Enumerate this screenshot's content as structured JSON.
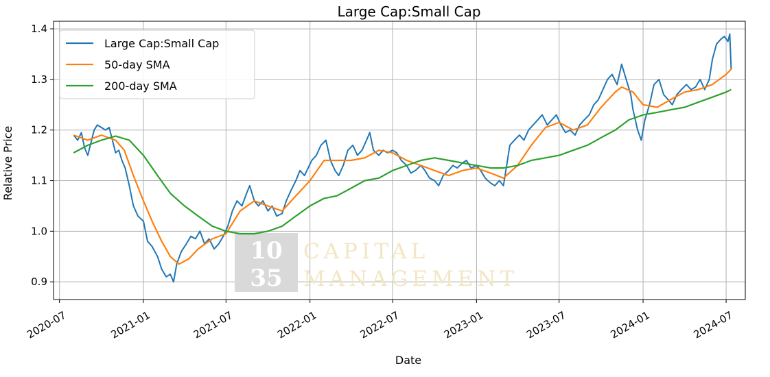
{
  "chart_data": {
    "type": "line",
    "title": "Large Cap:Small Cap",
    "xlabel": "Date",
    "ylabel": "Relative Price",
    "x_ticks": [
      "2020-07",
      "2021-01",
      "2021-07",
      "2022-01",
      "2022-07",
      "2023-01",
      "2023-07",
      "2024-01",
      "2024-07"
    ],
    "y_ticks": [
      "0.9",
      "1.0",
      "1.1",
      "1.2",
      "1.3",
      "1.4"
    ],
    "xlim": [
      "2020-06-18",
      "2024-08-12"
    ],
    "ylim": [
      0.865,
      1.415
    ],
    "grid": true,
    "legend": "top-left",
    "watermark": {
      "number_top": "10",
      "number_bottom": "35",
      "line1": "CAPITAL",
      "line2": "MANAGEMENT"
    },
    "series": [
      {
        "name": "Large Cap:Small Cap",
        "color": "#1f77b4",
        "points": [
          [
            "2020-08-01",
            1.19
          ],
          [
            "2020-08-10",
            1.18
          ],
          [
            "2020-08-18",
            1.195
          ],
          [
            "2020-08-25",
            1.165
          ],
          [
            "2020-09-01",
            1.15
          ],
          [
            "2020-09-08",
            1.175
          ],
          [
            "2020-09-15",
            1.2
          ],
          [
            "2020-09-22",
            1.21
          ],
          [
            "2020-10-01",
            1.205
          ],
          [
            "2020-10-10",
            1.2
          ],
          [
            "2020-10-18",
            1.205
          ],
          [
            "2020-10-25",
            1.18
          ],
          [
            "2020-11-01",
            1.155
          ],
          [
            "2020-11-08",
            1.16
          ],
          [
            "2020-11-15",
            1.14
          ],
          [
            "2020-11-22",
            1.125
          ],
          [
            "2020-12-01",
            1.09
          ],
          [
            "2020-12-10",
            1.05
          ],
          [
            "2020-12-20",
            1.03
          ],
          [
            "2021-01-01",
            1.02
          ],
          [
            "2021-01-10",
            0.98
          ],
          [
            "2021-01-20",
            0.97
          ],
          [
            "2021-02-01",
            0.95
          ],
          [
            "2021-02-10",
            0.925
          ],
          [
            "2021-02-20",
            0.91
          ],
          [
            "2021-03-01",
            0.915
          ],
          [
            "2021-03-08",
            0.9
          ],
          [
            "2021-03-15",
            0.935
          ],
          [
            "2021-03-25",
            0.96
          ],
          [
            "2021-04-05",
            0.975
          ],
          [
            "2021-04-15",
            0.99
          ],
          [
            "2021-04-25",
            0.985
          ],
          [
            "2021-05-05",
            1.0
          ],
          [
            "2021-05-15",
            0.975
          ],
          [
            "2021-05-25",
            0.985
          ],
          [
            "2021-06-05",
            0.965
          ],
          [
            "2021-06-15",
            0.975
          ],
          [
            "2021-06-25",
            0.99
          ],
          [
            "2021-07-05",
            1.01
          ],
          [
            "2021-07-15",
            1.04
          ],
          [
            "2021-07-25",
            1.06
          ],
          [
            "2021-08-05",
            1.05
          ],
          [
            "2021-08-15",
            1.075
          ],
          [
            "2021-08-22",
            1.09
          ],
          [
            "2021-09-01",
            1.06
          ],
          [
            "2021-09-10",
            1.05
          ],
          [
            "2021-09-20",
            1.06
          ],
          [
            "2021-10-01",
            1.04
          ],
          [
            "2021-10-10",
            1.05
          ],
          [
            "2021-10-20",
            1.03
          ],
          [
            "2021-11-01",
            1.035
          ],
          [
            "2021-11-10",
            1.06
          ],
          [
            "2021-11-20",
            1.08
          ],
          [
            "2021-12-01",
            1.1
          ],
          [
            "2021-12-10",
            1.12
          ],
          [
            "2021-12-20",
            1.11
          ],
          [
            "2022-01-05",
            1.14
          ],
          [
            "2022-01-15",
            1.15
          ],
          [
            "2022-01-25",
            1.17
          ],
          [
            "2022-02-05",
            1.18
          ],
          [
            "2022-02-15",
            1.14
          ],
          [
            "2022-02-25",
            1.12
          ],
          [
            "2022-03-05",
            1.11
          ],
          [
            "2022-03-15",
            1.13
          ],
          [
            "2022-03-25",
            1.16
          ],
          [
            "2022-04-05",
            1.17
          ],
          [
            "2022-04-15",
            1.15
          ],
          [
            "2022-04-25",
            1.16
          ],
          [
            "2022-05-05",
            1.18
          ],
          [
            "2022-05-12",
            1.195
          ],
          [
            "2022-05-20",
            1.16
          ],
          [
            "2022-06-01",
            1.15
          ],
          [
            "2022-06-10",
            1.16
          ],
          [
            "2022-06-20",
            1.155
          ],
          [
            "2022-07-01",
            1.16
          ],
          [
            "2022-07-10",
            1.155
          ],
          [
            "2022-07-20",
            1.14
          ],
          [
            "2022-08-01",
            1.13
          ],
          [
            "2022-08-10",
            1.115
          ],
          [
            "2022-08-20",
            1.12
          ],
          [
            "2022-09-01",
            1.13
          ],
          [
            "2022-09-10",
            1.12
          ],
          [
            "2022-09-20",
            1.105
          ],
          [
            "2022-10-01",
            1.1
          ],
          [
            "2022-10-10",
            1.09
          ],
          [
            "2022-10-20",
            1.11
          ],
          [
            "2022-11-01",
            1.12
          ],
          [
            "2022-11-10",
            1.13
          ],
          [
            "2022-11-20",
            1.125
          ],
          [
            "2022-12-01",
            1.135
          ],
          [
            "2022-12-10",
            1.14
          ],
          [
            "2022-12-20",
            1.125
          ],
          [
            "2023-01-01",
            1.13
          ],
          [
            "2023-01-10",
            1.12
          ],
          [
            "2023-01-20",
            1.105
          ],
          [
            "2023-02-01",
            1.095
          ],
          [
            "2023-02-10",
            1.09
          ],
          [
            "2023-02-20",
            1.1
          ],
          [
            "2023-03-01",
            1.09
          ],
          [
            "2023-03-08",
            1.13
          ],
          [
            "2023-03-15",
            1.17
          ],
          [
            "2023-03-25",
            1.18
          ],
          [
            "2023-04-05",
            1.19
          ],
          [
            "2023-04-15",
            1.18
          ],
          [
            "2023-04-25",
            1.2
          ],
          [
            "2023-05-05",
            1.21
          ],
          [
            "2023-05-15",
            1.22
          ],
          [
            "2023-05-25",
            1.23
          ],
          [
            "2023-06-05",
            1.21
          ],
          [
            "2023-06-15",
            1.22
          ],
          [
            "2023-06-25",
            1.23
          ],
          [
            "2023-07-05",
            1.21
          ],
          [
            "2023-07-15",
            1.195
          ],
          [
            "2023-07-25",
            1.2
          ],
          [
            "2023-08-05",
            1.19
          ],
          [
            "2023-08-15",
            1.21
          ],
          [
            "2023-08-25",
            1.22
          ],
          [
            "2023-09-05",
            1.23
          ],
          [
            "2023-09-15",
            1.25
          ],
          [
            "2023-09-25",
            1.26
          ],
          [
            "2023-10-05",
            1.28
          ],
          [
            "2023-10-15",
            1.3
          ],
          [
            "2023-10-25",
            1.31
          ],
          [
            "2023-11-05",
            1.29
          ],
          [
            "2023-11-15",
            1.33
          ],
          [
            "2023-11-25",
            1.3
          ],
          [
            "2023-12-05",
            1.27
          ],
          [
            "2023-12-10",
            1.24
          ],
          [
            "2023-12-20",
            1.2
          ],
          [
            "2023-12-28",
            1.18
          ],
          [
            "2024-01-05",
            1.22
          ],
          [
            "2024-01-15",
            1.25
          ],
          [
            "2024-01-25",
            1.29
          ],
          [
            "2024-02-05",
            1.3
          ],
          [
            "2024-02-15",
            1.27
          ],
          [
            "2024-02-25",
            1.26
          ],
          [
            "2024-03-05",
            1.25
          ],
          [
            "2024-03-15",
            1.27
          ],
          [
            "2024-03-25",
            1.28
          ],
          [
            "2024-04-05",
            1.29
          ],
          [
            "2024-04-15",
            1.28
          ],
          [
            "2024-04-25",
            1.285
          ],
          [
            "2024-05-05",
            1.3
          ],
          [
            "2024-05-15",
            1.28
          ],
          [
            "2024-05-25",
            1.3
          ],
          [
            "2024-06-01",
            1.34
          ],
          [
            "2024-06-10",
            1.37
          ],
          [
            "2024-06-20",
            1.38
          ],
          [
            "2024-06-27",
            1.385
          ],
          [
            "2024-07-05",
            1.375
          ],
          [
            "2024-07-09",
            1.39
          ],
          [
            "2024-07-12",
            1.32
          ]
        ]
      },
      {
        "name": "50-day SMA",
        "color": "#ff7f0e",
        "points": [
          [
            "2020-08-01",
            1.19
          ],
          [
            "2020-09-01",
            1.18
          ],
          [
            "2020-10-01",
            1.19
          ],
          [
            "2020-11-01",
            1.18
          ],
          [
            "2020-11-20",
            1.16
          ],
          [
            "2020-12-10",
            1.11
          ],
          [
            "2021-01-01",
            1.06
          ],
          [
            "2021-01-20",
            1.02
          ],
          [
            "2021-02-10",
            0.98
          ],
          [
            "2021-03-01",
            0.95
          ],
          [
            "2021-03-20",
            0.935
          ],
          [
            "2021-04-10",
            0.945
          ],
          [
            "2021-05-01",
            0.965
          ],
          [
            "2021-06-01",
            0.985
          ],
          [
            "2021-07-01",
            0.995
          ],
          [
            "2021-08-01",
            1.04
          ],
          [
            "2021-09-01",
            1.06
          ],
          [
            "2021-10-01",
            1.05
          ],
          [
            "2021-11-01",
            1.04
          ],
          [
            "2021-12-01",
            1.07
          ],
          [
            "2022-01-01",
            1.1
          ],
          [
            "2022-02-01",
            1.14
          ],
          [
            "2022-03-01",
            1.14
          ],
          [
            "2022-04-01",
            1.14
          ],
          [
            "2022-05-01",
            1.145
          ],
          [
            "2022-06-01",
            1.16
          ],
          [
            "2022-07-01",
            1.155
          ],
          [
            "2022-08-01",
            1.14
          ],
          [
            "2022-09-01",
            1.13
          ],
          [
            "2022-10-01",
            1.12
          ],
          [
            "2022-11-01",
            1.11
          ],
          [
            "2022-12-01",
            1.12
          ],
          [
            "2023-01-01",
            1.125
          ],
          [
            "2023-02-01",
            1.115
          ],
          [
            "2023-03-01",
            1.105
          ],
          [
            "2023-04-01",
            1.13
          ],
          [
            "2023-05-01",
            1.17
          ],
          [
            "2023-06-01",
            1.205
          ],
          [
            "2023-07-01",
            1.215
          ],
          [
            "2023-08-01",
            1.2
          ],
          [
            "2023-09-01",
            1.21
          ],
          [
            "2023-10-01",
            1.245
          ],
          [
            "2023-11-01",
            1.275
          ],
          [
            "2023-11-15",
            1.285
          ],
          [
            "2023-12-10",
            1.275
          ],
          [
            "2024-01-01",
            1.25
          ],
          [
            "2024-02-01",
            1.245
          ],
          [
            "2024-03-01",
            1.26
          ],
          [
            "2024-04-01",
            1.275
          ],
          [
            "2024-05-01",
            1.28
          ],
          [
            "2024-06-01",
            1.29
          ],
          [
            "2024-07-01",
            1.31
          ],
          [
            "2024-07-12",
            1.32
          ]
        ]
      },
      {
        "name": "200-day SMA",
        "color": "#2ca02c",
        "points": [
          [
            "2020-08-01",
            1.155
          ],
          [
            "2020-09-01",
            1.17
          ],
          [
            "2020-10-01",
            1.18
          ],
          [
            "2020-11-01",
            1.188
          ],
          [
            "2020-12-01",
            1.18
          ],
          [
            "2021-01-01",
            1.15
          ],
          [
            "2021-02-01",
            1.11
          ],
          [
            "2021-03-01",
            1.075
          ],
          [
            "2021-04-01",
            1.05
          ],
          [
            "2021-05-01",
            1.03
          ],
          [
            "2021-06-01",
            1.01
          ],
          [
            "2021-07-01",
            1.0
          ],
          [
            "2021-08-01",
            0.995
          ],
          [
            "2021-09-01",
            0.995
          ],
          [
            "2021-10-01",
            1.0
          ],
          [
            "2021-11-01",
            1.01
          ],
          [
            "2021-12-01",
            1.03
          ],
          [
            "2022-01-01",
            1.05
          ],
          [
            "2022-02-01",
            1.065
          ],
          [
            "2022-03-01",
            1.07
          ],
          [
            "2022-04-01",
            1.085
          ],
          [
            "2022-05-01",
            1.1
          ],
          [
            "2022-06-01",
            1.105
          ],
          [
            "2022-07-01",
            1.12
          ],
          [
            "2022-08-01",
            1.13
          ],
          [
            "2022-09-01",
            1.14
          ],
          [
            "2022-10-01",
            1.145
          ],
          [
            "2022-11-01",
            1.14
          ],
          [
            "2022-12-01",
            1.135
          ],
          [
            "2023-01-01",
            1.13
          ],
          [
            "2023-02-01",
            1.125
          ],
          [
            "2023-03-01",
            1.125
          ],
          [
            "2023-04-01",
            1.13
          ],
          [
            "2023-05-01",
            1.14
          ],
          [
            "2023-06-01",
            1.145
          ],
          [
            "2023-07-01",
            1.15
          ],
          [
            "2023-08-01",
            1.16
          ],
          [
            "2023-09-01",
            1.17
          ],
          [
            "2023-10-01",
            1.185
          ],
          [
            "2023-11-01",
            1.2
          ],
          [
            "2023-12-01",
            1.22
          ],
          [
            "2024-01-01",
            1.23
          ],
          [
            "2024-02-01",
            1.235
          ],
          [
            "2024-03-01",
            1.24
          ],
          [
            "2024-04-01",
            1.245
          ],
          [
            "2024-05-01",
            1.255
          ],
          [
            "2024-06-01",
            1.265
          ],
          [
            "2024-07-01",
            1.275
          ],
          [
            "2024-07-12",
            1.28
          ]
        ]
      }
    ]
  }
}
